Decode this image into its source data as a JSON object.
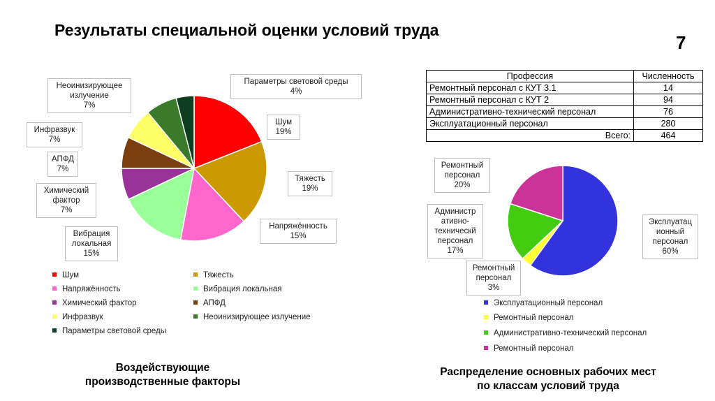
{
  "slide": {
    "title": "Результаты специальной оценки условий труда",
    "number": "7"
  },
  "table": {
    "headers": [
      "Профессия",
      "Численность"
    ],
    "rows": [
      {
        "profession": "Ремонтный персонал с КУТ 3.1",
        "count": "14"
      },
      {
        "profession": "Ремонтный персонал с КУТ 2",
        "count": "94"
      },
      {
        "profession": "Административно-технический персонал",
        "count": "76"
      },
      {
        "profession": "Эксплуатационный персонал",
        "count": "280"
      }
    ],
    "total_label": "Всего:",
    "total_value": "464"
  },
  "captions": {
    "left": [
      "Воздействующие",
      "производственные факторы"
    ],
    "right": [
      "Распределение основных рабочих мест",
      "по классам условий труда"
    ]
  },
  "chart_data": [
    {
      "type": "pie",
      "title": "",
      "legend_position": "bottom",
      "slices": [
        {
          "label": "Шум",
          "value": 19,
          "color": "#ff0000",
          "callout": [
            "Шум",
            "19%"
          ]
        },
        {
          "label": "Тяжесть",
          "value": 19,
          "color": "#cc9900",
          "callout": [
            "Тяжесть",
            "19%"
          ]
        },
        {
          "label": "Напряжённость",
          "value": 15,
          "color": "#ff66cc",
          "callout": [
            "Напряжённость",
            "15%"
          ]
        },
        {
          "label": "Вибрация локальная",
          "value": 15,
          "color": "#99ff99",
          "callout": [
            "Вибрация",
            "локальная",
            "15%"
          ]
        },
        {
          "label": "Химический фактор",
          "value": 7,
          "color": "#993399",
          "callout": [
            "Химический",
            "фактор",
            "7%"
          ]
        },
        {
          "label": "АПФД",
          "value": 7,
          "color": "#7b3e0f",
          "callout": [
            "АПФД",
            "7%"
          ]
        },
        {
          "label": "Инфразвук",
          "value": 7,
          "color": "#ffff66",
          "callout": [
            "Инфразвук",
            "7%"
          ]
        },
        {
          "label": "Неоинизирующее излучение",
          "value": 7,
          "color": "#3a7a2a",
          "callout": [
            "Неоинизирующее",
            "излучение",
            "7%"
          ]
        },
        {
          "label": "Параметры световой среды",
          "value": 4,
          "color": "#0f3d1f",
          "callout": [
            "Параметры световой среды",
            "4%"
          ]
        }
      ]
    },
    {
      "type": "pie",
      "title": "",
      "legend_position": "bottom",
      "slices": [
        {
          "label": "Эксплуатационный персонал",
          "value": 60,
          "color": "#3333dd",
          "callout": [
            "Эксплуатац",
            "ионный",
            "персонал",
            "60%"
          ]
        },
        {
          "label": "Ремонтный персонал",
          "value": 3,
          "color": "#ffff33",
          "callout": [
            "Ремонтный",
            "персонал",
            "3%"
          ]
        },
        {
          "label": "Административно-технический персонал",
          "value": 17,
          "color": "#44cc11",
          "callout": [
            "Администр",
            "ативно-",
            "техническ",
            "й",
            "персонал",
            "17%"
          ]
        },
        {
          "label": "Ремонтный персонал",
          "value": 20,
          "color": "#cc3399",
          "callout": [
            "Ремонтный",
            "персонал",
            "20%"
          ]
        }
      ]
    }
  ]
}
